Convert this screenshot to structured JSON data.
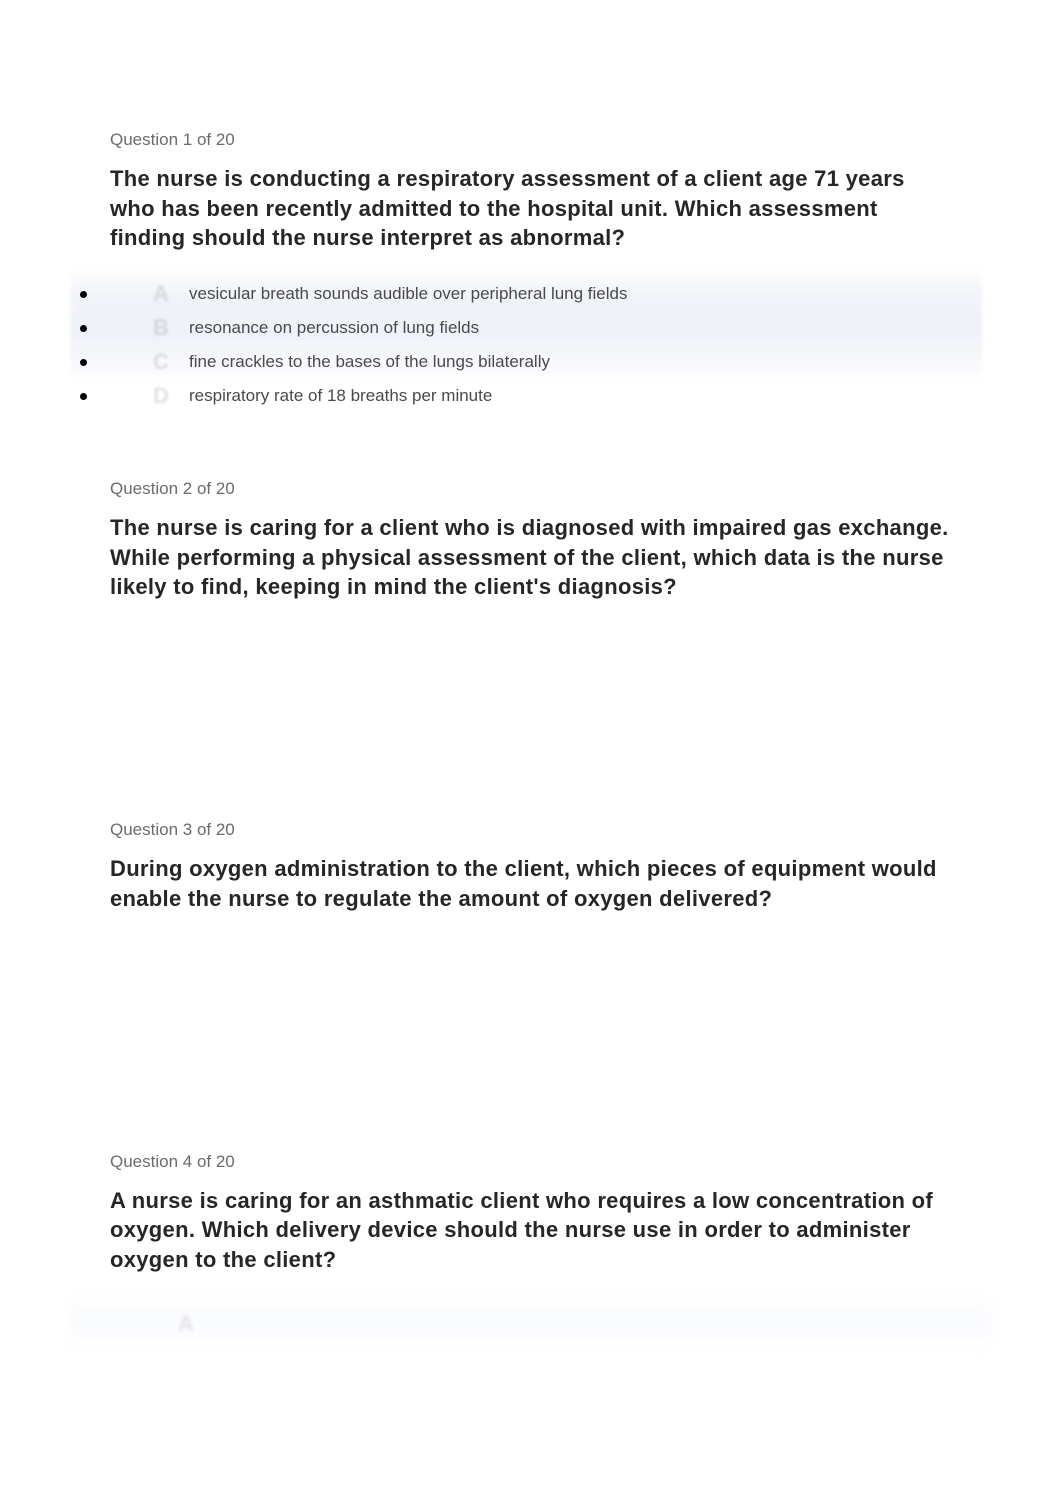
{
  "colors": {
    "page_bg": "#ffffff",
    "counter_text": "#6b6b6b",
    "prompt_text": "#262626",
    "answer_text": "#4a4a4a",
    "bullet": "#000000",
    "blur_tint": "#eef1f7",
    "ghost_letter": "rgba(120,120,128,0.22)"
  },
  "typography": {
    "counter_fontsize": 17,
    "prompt_fontsize": 22,
    "prompt_weight": "bold",
    "answer_fontsize": 17,
    "letter_fontsize": 22
  },
  "questions": [
    {
      "counter": "Question 1 of 20",
      "prompt": "The nurse is conducting a respiratory assessment of a client age 71 years who has been recently admitted to the hospital unit. Which assessment finding should the nurse interpret as abnormal?",
      "options": [
        {
          "letter": "A",
          "text": "vesicular breath sounds audible over peripheral lung fields"
        },
        {
          "letter": "B",
          "text": "resonance on percussion of lung fields"
        },
        {
          "letter": "C",
          "text": "fine crackles to the bases of the lungs bilaterally"
        },
        {
          "letter": "D",
          "text": "respiratory rate of 18 breaths per minute"
        }
      ]
    },
    {
      "counter": "Question 2 of 20",
      "prompt": "The nurse is caring for a client who is diagnosed with impaired gas exchange. While performing a physical assessment of the client, which data is the nurse likely to find, keeping in mind the client's diagnosis?",
      "options": []
    },
    {
      "counter": "Question 3 of 20",
      "prompt": "During oxygen administration to the client, which pieces of equipment would enable the nurse to regulate the amount of oxygen delivered?",
      "options": []
    },
    {
      "counter": "Question 4 of 20",
      "prompt": "A nurse is caring for an asthmatic client who requires a low concentration of oxygen. Which delivery device should the nurse use in order to administer oxygen to the client?",
      "options": []
    }
  ],
  "ghost_letter": "A"
}
